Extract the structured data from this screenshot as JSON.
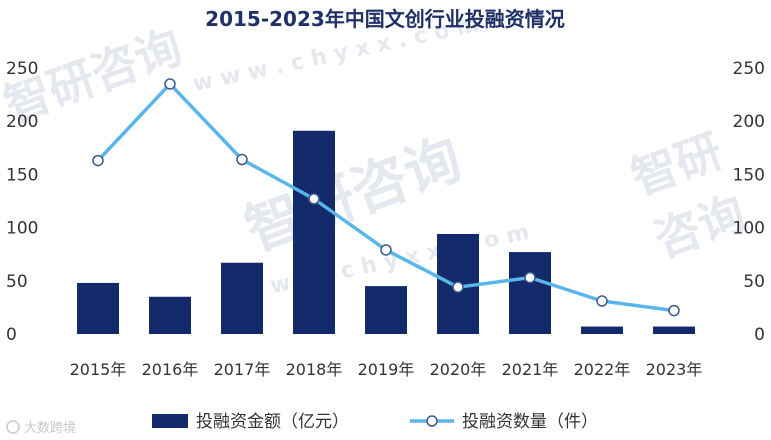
{
  "chart_data": {
    "type": "bar",
    "title": "2015-2023年中国文创行业投融资情况",
    "categories": [
      "2015年",
      "2016年",
      "2017年",
      "2018年",
      "2019年",
      "2020年",
      "2021年",
      "2022年",
      "2023年"
    ],
    "series": [
      {
        "name": "投融资金额（亿元）",
        "type": "bar",
        "axis": "left",
        "values": [
          48,
          35,
          67,
          191,
          45,
          94,
          77,
          7,
          7
        ],
        "color": "#132a6b"
      },
      {
        "name": "投融资数量（件）",
        "type": "line",
        "axis": "right",
        "values": [
          163,
          235,
          164,
          127,
          79,
          44,
          53,
          31,
          22
        ],
        "color": "#59b6ea"
      }
    ],
    "ylim_left": [
      0,
      250
    ],
    "ylim_right": [
      0,
      250
    ],
    "yticks_left": [
      "0",
      "50",
      "100",
      "150",
      "200",
      "250"
    ],
    "yticks_right": [
      "0",
      "50",
      "100",
      "150",
      "200",
      "250"
    ],
    "grid": false,
    "legend_position": "bottom"
  },
  "watermark": {
    "brand": "智研咨询",
    "site": "w w w . c h y x x . c o m",
    "badge": "大数跨境"
  }
}
